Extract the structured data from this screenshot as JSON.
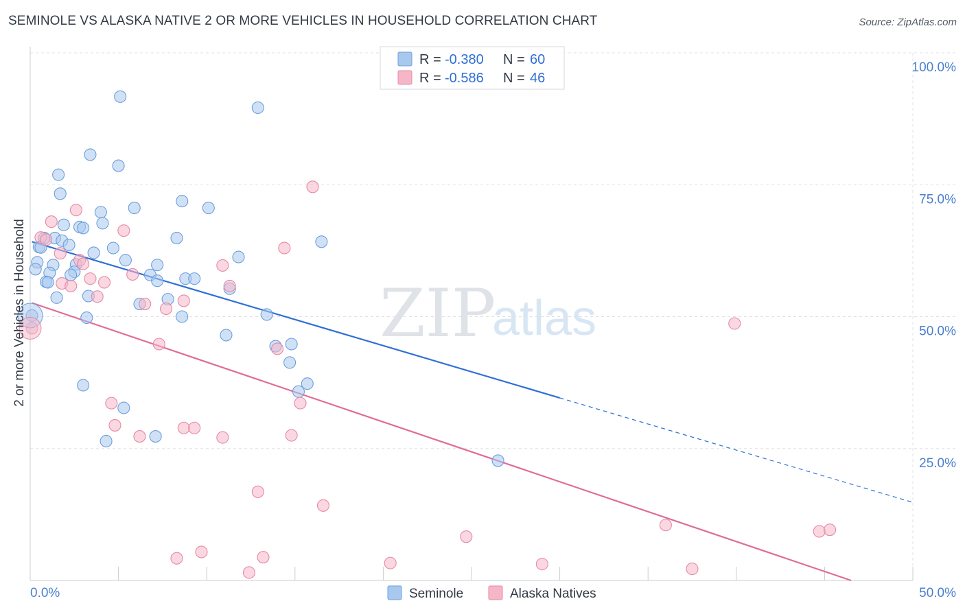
{
  "header": {
    "title": "SEMINOLE VS ALASKA NATIVE 2 OR MORE VEHICLES IN HOUSEHOLD CORRELATION CHART",
    "source": "Source: ZipAtlas.com"
  },
  "watermark": {
    "part1": "ZIP",
    "part2": "atlas"
  },
  "legend_box": {
    "rows": [
      {
        "r_label": "R =",
        "r_value": "-0.380",
        "n_label": "N =",
        "n_value": "60",
        "color": "#a9c8ee"
      },
      {
        "r_label": "R =",
        "r_value": "-0.586",
        "n_label": "N =",
        "n_value": "46",
        "color": "#f5b7c8"
      }
    ]
  },
  "chart_data": {
    "type": "scatter",
    "xlabel": "",
    "ylabel": "2 or more Vehicles in Household",
    "xlim": [
      0,
      50
    ],
    "ylim": [
      0,
      100
    ],
    "x_ticks": [
      "0.0%",
      "50.0%"
    ],
    "y_ticks": [
      "100.0%",
      "75.0%",
      "50.0%",
      "25.0%"
    ],
    "y_tick_values": [
      100,
      75,
      50,
      25
    ],
    "grid": true,
    "legend_position": "bottom",
    "series": [
      {
        "name": "Seminole",
        "color": "#a9c8ee",
        "stroke": "#6b9fde",
        "trend": {
          "x0": 0.1,
          "y0": 64.2,
          "x1": 30,
          "y1": 34.6,
          "dash_to_x": 50,
          "dash_to_y": 14.8,
          "color": "#2f6fd6"
        },
        "points": [
          [
            5.1,
            91.7
          ],
          [
            12.9,
            89.6
          ],
          [
            3.4,
            80.7
          ],
          [
            5.0,
            78.6
          ],
          [
            1.6,
            76.9
          ],
          [
            1.7,
            73.3
          ],
          [
            8.6,
            71.9
          ],
          [
            5.9,
            70.6
          ],
          [
            10.1,
            70.6
          ],
          [
            4.0,
            69.8
          ],
          [
            1.9,
            67.4
          ],
          [
            4.1,
            67.7
          ],
          [
            2.8,
            67.0
          ],
          [
            3.0,
            66.8
          ],
          [
            0.8,
            64.9
          ],
          [
            1.4,
            64.9
          ],
          [
            8.3,
            64.9
          ],
          [
            16.5,
            64.2
          ],
          [
            1.8,
            64.4
          ],
          [
            0.5,
            63.2
          ],
          [
            0.6,
            63.1
          ],
          [
            2.2,
            63.6
          ],
          [
            4.7,
            63.0
          ],
          [
            3.6,
            62.1
          ],
          [
            11.8,
            61.3
          ],
          [
            5.4,
            60.7
          ],
          [
            0.4,
            60.3
          ],
          [
            1.3,
            59.8
          ],
          [
            2.6,
            59.9
          ],
          [
            7.2,
            59.8
          ],
          [
            0.3,
            59.0
          ],
          [
            2.5,
            58.5
          ],
          [
            1.1,
            58.3
          ],
          [
            2.3,
            57.9
          ],
          [
            6.8,
            57.9
          ],
          [
            8.8,
            57.2
          ],
          [
            9.3,
            57.2
          ],
          [
            0.9,
            56.6
          ],
          [
            1.0,
            56.5
          ],
          [
            7.2,
            56.8
          ],
          [
            11.3,
            55.3
          ],
          [
            3.3,
            53.9
          ],
          [
            1.5,
            53.6
          ],
          [
            7.8,
            53.3
          ],
          [
            6.2,
            52.4
          ],
          [
            13.4,
            50.4
          ],
          [
            3.2,
            49.8
          ],
          [
            8.6,
            50.0
          ],
          [
            0.1,
            50.2
          ],
          [
            11.1,
            46.5
          ],
          [
            13.9,
            44.4
          ],
          [
            14.8,
            44.8
          ],
          [
            14.7,
            41.3
          ],
          [
            15.7,
            37.3
          ],
          [
            3.0,
            37.0
          ],
          [
            15.2,
            35.8
          ],
          [
            5.3,
            32.7
          ],
          [
            7.1,
            27.3
          ],
          [
            4.3,
            26.4
          ],
          [
            26.5,
            22.7
          ]
        ]
      },
      {
        "name": "Alaska Natives",
        "color": "#f5b7c8",
        "stroke": "#e58aa6",
        "trend": {
          "x0": 0.1,
          "y0": 52.6,
          "x1": 46.5,
          "y1": 0.0,
          "color": "#e06c96"
        },
        "points": [
          [
            16.0,
            74.6
          ],
          [
            2.6,
            70.2
          ],
          [
            1.2,
            68.0
          ],
          [
            5.3,
            66.3
          ],
          [
            0.6,
            65.0
          ],
          [
            0.9,
            64.6
          ],
          [
            14.4,
            63.0
          ],
          [
            1.7,
            62.0
          ],
          [
            2.8,
            60.7
          ],
          [
            3.0,
            60.0
          ],
          [
            10.9,
            59.7
          ],
          [
            5.8,
            58.0
          ],
          [
            3.4,
            57.2
          ],
          [
            1.8,
            56.3
          ],
          [
            4.2,
            56.5
          ],
          [
            2.3,
            55.8
          ],
          [
            11.3,
            55.8
          ],
          [
            3.8,
            53.8
          ],
          [
            8.7,
            53.0
          ],
          [
            6.5,
            52.4
          ],
          [
            7.7,
            51.5
          ],
          [
            0.1,
            47.8
          ],
          [
            39.9,
            48.7
          ],
          [
            7.3,
            44.8
          ],
          [
            14.0,
            43.9
          ],
          [
            4.6,
            33.6
          ],
          [
            15.3,
            33.6
          ],
          [
            4.8,
            29.4
          ],
          [
            8.7,
            28.9
          ],
          [
            9.3,
            28.9
          ],
          [
            6.2,
            27.3
          ],
          [
            10.9,
            27.1
          ],
          [
            14.8,
            27.5
          ],
          [
            12.9,
            16.8
          ],
          [
            16.6,
            14.2
          ],
          [
            36.0,
            10.5
          ],
          [
            44.7,
            9.3
          ],
          [
            45.3,
            9.6
          ],
          [
            24.7,
            8.3
          ],
          [
            9.7,
            5.4
          ],
          [
            8.3,
            4.2
          ],
          [
            13.2,
            4.4
          ],
          [
            20.4,
            3.3
          ],
          [
            29.0,
            3.1
          ],
          [
            37.5,
            2.2
          ],
          [
            12.4,
            1.5
          ]
        ]
      }
    ]
  }
}
